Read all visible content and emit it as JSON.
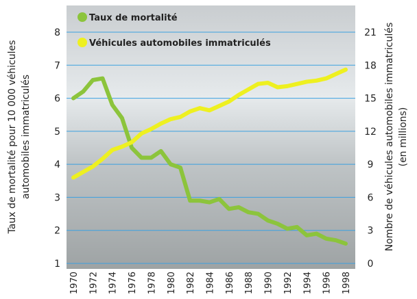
{
  "chart_data": {
    "type": "line",
    "ylabel": [
      "Taux de mortalité pour 10 000 véhicules",
      "automobiles immatriculés"
    ],
    "y2label": [
      "Nombre de véhicules automobiles immatriculés",
      "(en millions)"
    ],
    "x": [
      1970,
      1971,
      1972,
      1973,
      1974,
      1975,
      1976,
      1977,
      1978,
      1979,
      1980,
      1981,
      1982,
      1983,
      1984,
      1985,
      1986,
      1987,
      1988,
      1989,
      1990,
      1991,
      1992,
      1993,
      1994,
      1995,
      1996,
      1997,
      1998
    ],
    "xlim": [
      1970,
      1998
    ],
    "xticks": [
      1970,
      1972,
      1974,
      1976,
      1978,
      1980,
      1982,
      1984,
      1986,
      1988,
      1990,
      1992,
      1994,
      1996,
      1998
    ],
    "ylim": [
      1,
      8
    ],
    "yticks": [
      1,
      2,
      3,
      4,
      5,
      6,
      7,
      8
    ],
    "y2lim": [
      0,
      21
    ],
    "y2ticks": [
      0,
      3,
      6,
      9,
      12,
      15,
      18,
      21
    ],
    "grid": true,
    "series": [
      {
        "name": "Taux de mortalité",
        "color": "#8cc43c",
        "values": [
          6.0,
          6.2,
          6.55,
          6.6,
          5.8,
          5.4,
          4.5,
          4.2,
          4.2,
          4.4,
          4.0,
          3.9,
          2.9,
          2.9,
          2.85,
          2.95,
          2.65,
          2.7,
          2.55,
          2.5,
          2.3,
          2.2,
          2.05,
          2.1,
          1.85,
          1.9,
          1.75,
          1.7,
          1.6
        ]
      },
      {
        "name": "Véhicules automobiles immatriculés",
        "color": "#eef020",
        "axis": "y2",
        "values": [
          7.8,
          8.3,
          8.8,
          9.5,
          10.3,
          10.6,
          11.0,
          11.8,
          12.2,
          12.7,
          13.1,
          13.3,
          13.8,
          14.1,
          13.9,
          14.3,
          14.7,
          15.3,
          15.8,
          16.3,
          16.4,
          16.0,
          16.1,
          16.3,
          16.5,
          16.6,
          16.8,
          17.2,
          17.6
        ]
      }
    ]
  }
}
